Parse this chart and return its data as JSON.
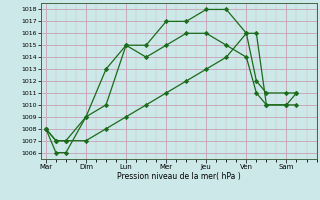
{
  "xlabel": "Pression niveau de la mer( hPa )",
  "days": [
    "Mar",
    "Dim",
    "Lun",
    "Mer",
    "Jeu",
    "Ven",
    "Sam"
  ],
  "day_x": [
    0,
    4,
    8,
    12,
    16,
    20,
    24
  ],
  "xlim": [
    -0.5,
    27
  ],
  "ylim": [
    1005.5,
    1018.5
  ],
  "yticks": [
    1006,
    1007,
    1008,
    1009,
    1010,
    1011,
    1012,
    1013,
    1014,
    1015,
    1016,
    1017,
    1018
  ],
  "line1_x": [
    0,
    1,
    2,
    4,
    6,
    8,
    10,
    12,
    14,
    16,
    18,
    20,
    21,
    22,
    24,
    25
  ],
  "line1_y": [
    1008,
    1006,
    1006,
    1009,
    1013,
    1015,
    1015,
    1017,
    1017,
    1018,
    1018,
    1016,
    1012,
    1011,
    1011,
    1011
  ],
  "line2_x": [
    0,
    1,
    2,
    4,
    6,
    8,
    10,
    12,
    14,
    16,
    18,
    20,
    21,
    22,
    24,
    25
  ],
  "line2_y": [
    1008,
    1007,
    1007,
    1009,
    1010,
    1015,
    1014,
    1015,
    1016,
    1016,
    1015,
    1014,
    1011,
    1010,
    1010,
    1010
  ],
  "line3_x": [
    0,
    1,
    2,
    4,
    6,
    8,
    10,
    12,
    14,
    16,
    18,
    20,
    21,
    22,
    24,
    25
  ],
  "line3_y": [
    1008,
    1007,
    1007,
    1007,
    1008,
    1009,
    1010,
    1011,
    1012,
    1013,
    1014,
    1016,
    1016,
    1010,
    1010,
    1011
  ],
  "bg_color": "#cce8e8",
  "grid_color_major": "#c8a0b4",
  "grid_color_minor": "#d4b8c8",
  "line_color": "#1a6b1a",
  "marker": "D",
  "marker_size": 2.2,
  "line_width": 0.9
}
